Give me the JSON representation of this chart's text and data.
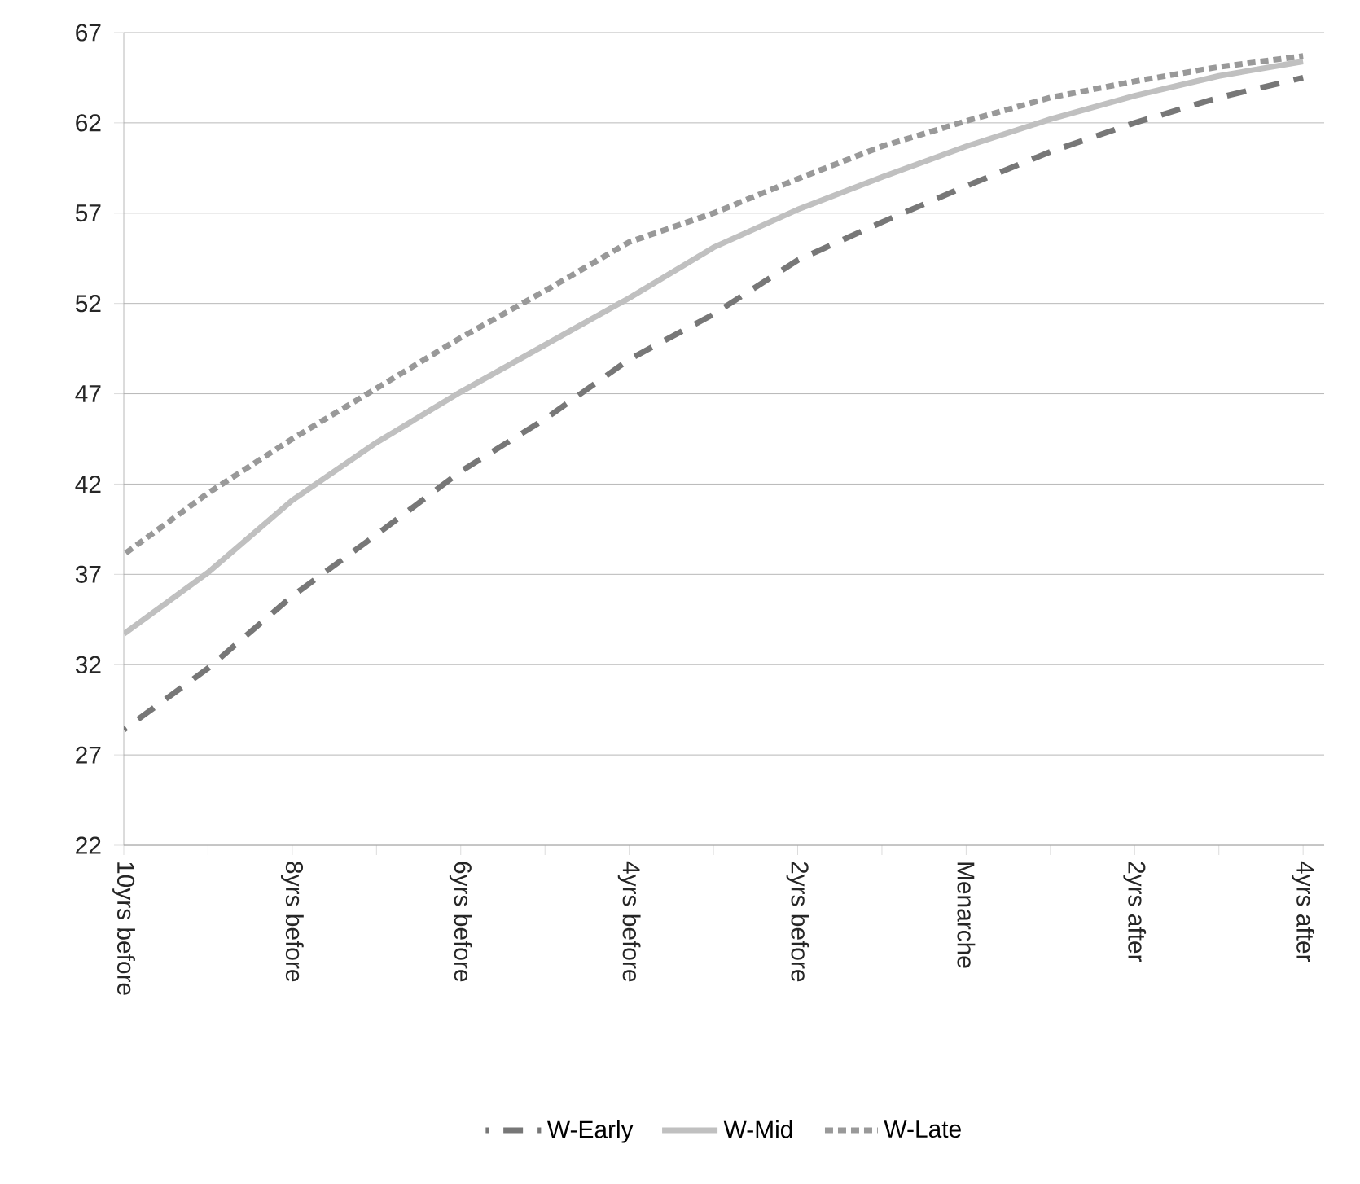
{
  "chart_data": {
    "type": "line",
    "categories": [
      "10yrs before",
      null,
      "8yrs before",
      null,
      "6yrs before",
      null,
      "4yrs before",
      null,
      "2yrs before",
      null,
      "Menarche",
      null,
      "2yrs after",
      null,
      "4yrs after"
    ],
    "series": [
      {
        "name": "W-Early",
        "color": "#777777",
        "line_style": "dashed",
        "values": [
          28.4,
          31.8,
          35.8,
          39.2,
          42.7,
          45.6,
          48.9,
          51.4,
          54.4,
          56.5,
          58.5,
          60.4,
          62.0,
          63.4,
          64.5
        ]
      },
      {
        "name": "W-Mid",
        "color": "#c0c0c0",
        "line_style": "solid",
        "values": [
          33.7,
          37.1,
          41.1,
          44.3,
          47.1,
          49.7,
          52.3,
          55.1,
          57.2,
          59.0,
          60.7,
          62.2,
          63.5,
          64.6,
          65.4
        ]
      },
      {
        "name": "W-Late",
        "color": "#999999",
        "line_style": "dotted",
        "values": [
          38.1,
          41.5,
          44.5,
          47.3,
          50.1,
          52.7,
          55.4,
          57.0,
          58.9,
          60.7,
          62.1,
          63.4,
          64.3,
          65.1,
          65.7
        ]
      }
    ],
    "ylim": [
      22,
      67
    ],
    "yticks": [
      22,
      27,
      32,
      37,
      42,
      47,
      52,
      57,
      62,
      67
    ],
    "grid": "y",
    "legend": "bottom",
    "marker": "none"
  }
}
